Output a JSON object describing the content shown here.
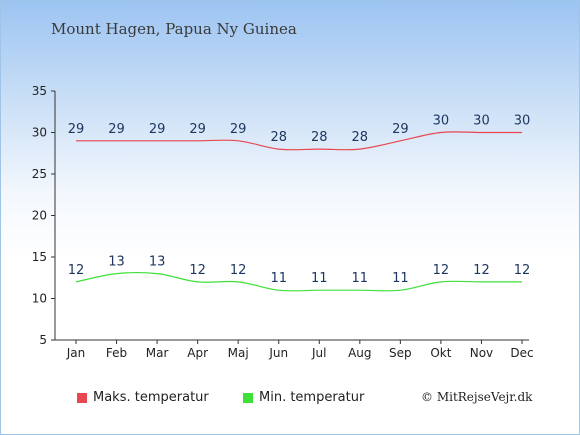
{
  "title": "Mount Hagen, Papua Ny Guinea",
  "credit": "© MitRejseVejr.dk",
  "chart_data": {
    "type": "line",
    "categories": [
      "Jan",
      "Feb",
      "Mar",
      "Apr",
      "Maj",
      "Jun",
      "Jul",
      "Aug",
      "Sep",
      "Okt",
      "Nov",
      "Dec"
    ],
    "series": [
      {
        "name": "Maks. temperatur",
        "color": "#e8474f",
        "values": [
          29,
          29,
          29,
          29,
          29,
          28,
          28,
          28,
          29,
          30,
          30,
          30
        ]
      },
      {
        "name": "Min. temperatur",
        "color": "#3ee03a",
        "values": [
          12,
          13,
          13,
          12,
          12,
          11,
          11,
          11,
          11,
          12,
          12,
          12
        ]
      }
    ],
    "ylim": [
      5,
      35
    ],
    "yticks": [
      5,
      10,
      15,
      20,
      25,
      30,
      35
    ],
    "grid": false,
    "legend": "bottom"
  }
}
